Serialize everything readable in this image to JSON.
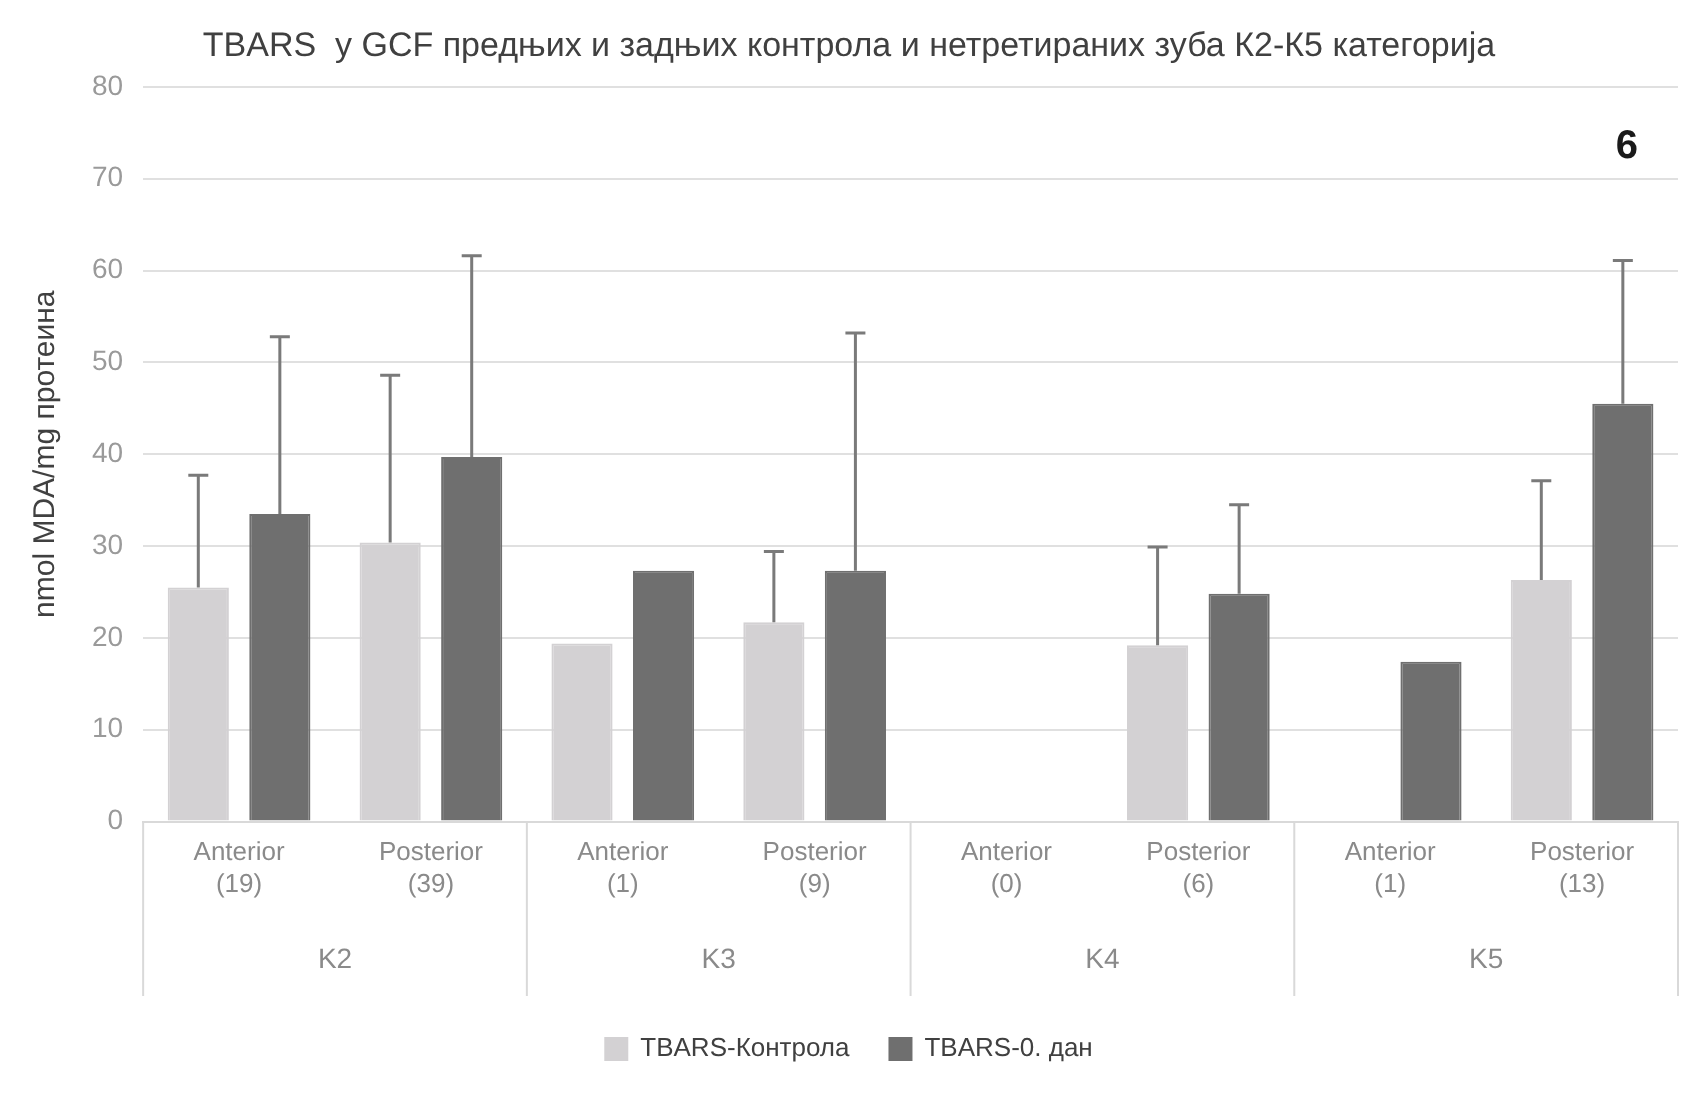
{
  "chart_data": {
    "type": "bar",
    "title": "TBARS  у GCF предњих и задњих контрола и нетретираних зуба К2-К5 категорија",
    "ylabel": "nmol MDA/mg протеина",
    "categories": [
      "Anterior (19)",
      "Posterior (39)",
      "Anterior (1)",
      "Posterior (9)",
      "Anterior (0)",
      "Posterior (6)",
      "Anterior (1)",
      "Posterior (13)"
    ],
    "series": [
      {
        "name": "TBARS-Контрола",
        "color": "#d3d1d3",
        "values": [
          25.5,
          30.4,
          19.4,
          21.7,
          null,
          19.2,
          null,
          26.3
        ],
        "errors": [
          [
            25.5,
            37.7
          ],
          [
            30.4,
            48.6
          ],
          null,
          [
            21.7,
            29.4
          ],
          null,
          [
            19.2,
            29.9
          ],
          null,
          [
            26.3,
            37.1
          ]
        ]
      },
      {
        "name": "TBARS-0. дан",
        "color": "#6f6f6f",
        "values": [
          33.5,
          39.7,
          27.3,
          27.3,
          null,
          24.8,
          17.4,
          45.5
        ],
        "errors": [
          [
            33.5,
            52.8
          ],
          [
            39.7,
            61.6
          ],
          null,
          [
            27.3,
            53.2
          ],
          null,
          [
            24.8,
            34.5
          ],
          null,
          [
            45.5,
            61.1
          ]
        ]
      }
    ],
    "ylim": [
      0,
      80
    ],
    "yticks": [
      0,
      10,
      20,
      30,
      40,
      50,
      60,
      70,
      80
    ],
    "grid": "y",
    "legend": "bottom",
    "annotations": [
      "K2",
      "K3",
      "K4",
      "K5",
      "6"
    ]
  }
}
